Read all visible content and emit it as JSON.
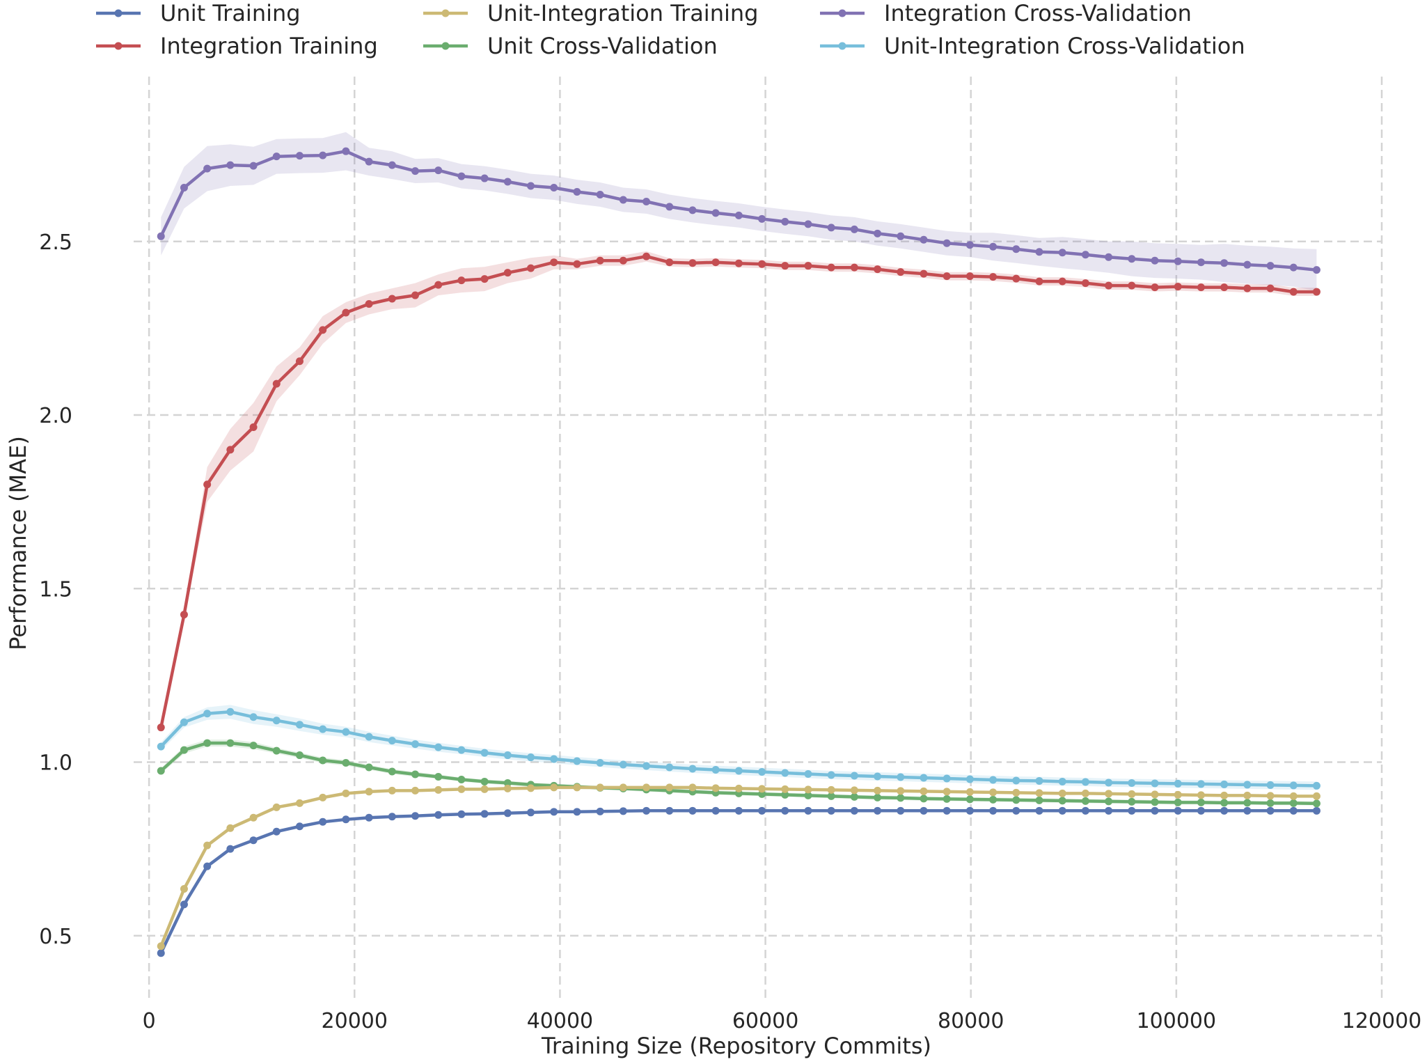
{
  "chart_data": {
    "type": "line",
    "title": "",
    "xlabel": "Training Size (Repository Commits)",
    "ylabel": "Performance (MAE)",
    "xlim": [
      -1500,
      120000
    ],
    "ylim": [
      0.315,
      2.975
    ],
    "xticks": [
      0,
      20000,
      40000,
      60000,
      80000,
      100000,
      120000
    ],
    "xtick_labels": [
      "0",
      "20000",
      "40000",
      "60000",
      "80000",
      "100000",
      "120000"
    ],
    "yticks": [
      0.5,
      1.0,
      1.5,
      2.0,
      2.5
    ],
    "ytick_labels": [
      "0.5",
      "1.0",
      "1.5",
      "2.0",
      "2.5"
    ],
    "grid": true,
    "legend_position": "top",
    "x": [
      1160,
      3410,
      5660,
      7910,
      10160,
      12410,
      14660,
      16910,
      19160,
      21410,
      23660,
      25910,
      28160,
      30410,
      32660,
      34910,
      37160,
      39410,
      41660,
      43910,
      46160,
      48410,
      50660,
      52910,
      55160,
      57410,
      59660,
      61910,
      64160,
      66410,
      68660,
      70910,
      73160,
      75410,
      77660,
      79910,
      82160,
      84410,
      86660,
      88910,
      91160,
      93410,
      95660,
      97910,
      100160,
      102410,
      104660,
      106910,
      109160,
      111410,
      113660
    ],
    "series": [
      {
        "name": "Unit Training",
        "color": "#5875b1",
        "values": [
          0.45,
          0.59,
          0.7,
          0.75,
          0.775,
          0.8,
          0.815,
          0.828,
          0.835,
          0.84,
          0.843,
          0.845,
          0.848,
          0.85,
          0.851,
          0.853,
          0.855,
          0.857,
          0.857,
          0.858,
          0.859,
          0.86,
          0.86,
          0.86,
          0.86,
          0.86,
          0.86,
          0.86,
          0.86,
          0.86,
          0.86,
          0.86,
          0.86,
          0.86,
          0.86,
          0.86,
          0.86,
          0.86,
          0.86,
          0.86,
          0.86,
          0.86,
          0.86,
          0.86,
          0.86,
          0.86,
          0.86,
          0.86,
          0.86,
          0.86,
          0.86
        ],
        "band": [
          0.004,
          0.004,
          0.004,
          0.004,
          0.004,
          0.004,
          0.004,
          0.004,
          0.004,
          0.004,
          0.004,
          0.004,
          0.004,
          0.004,
          0.004,
          0.004,
          0.004,
          0.004,
          0.004,
          0.004,
          0.004,
          0.004,
          0.004,
          0.004,
          0.004,
          0.004,
          0.004,
          0.004,
          0.004,
          0.004,
          0.004,
          0.004,
          0.004,
          0.004,
          0.004,
          0.004,
          0.004,
          0.004,
          0.004,
          0.004,
          0.004,
          0.004,
          0.004,
          0.004,
          0.004,
          0.004,
          0.004,
          0.004,
          0.004,
          0.004,
          0.004
        ]
      },
      {
        "name": "Unit Cross-Validation",
        "color": "#6aad6e",
        "values": [
          0.975,
          1.035,
          1.055,
          1.055,
          1.048,
          1.033,
          1.02,
          1.005,
          0.998,
          0.985,
          0.973,
          0.965,
          0.958,
          0.95,
          0.944,
          0.94,
          0.935,
          0.932,
          0.929,
          0.926,
          0.924,
          0.921,
          0.918,
          0.915,
          0.912,
          0.91,
          0.908,
          0.906,
          0.904,
          0.902,
          0.9,
          0.898,
          0.897,
          0.895,
          0.894,
          0.893,
          0.892,
          0.891,
          0.89,
          0.889,
          0.888,
          0.887,
          0.886,
          0.885,
          0.884,
          0.884,
          0.883,
          0.883,
          0.882,
          0.882,
          0.881
        ],
        "band": [
          0.008,
          0.01,
          0.01,
          0.01,
          0.01,
          0.008,
          0.008,
          0.008,
          0.008,
          0.007,
          0.007,
          0.007,
          0.006,
          0.006,
          0.006,
          0.006,
          0.006,
          0.006,
          0.006,
          0.006,
          0.006,
          0.006,
          0.006,
          0.006,
          0.006,
          0.006,
          0.006,
          0.006,
          0.006,
          0.006,
          0.006,
          0.006,
          0.006,
          0.006,
          0.006,
          0.006,
          0.006,
          0.006,
          0.006,
          0.006,
          0.006,
          0.006,
          0.006,
          0.006,
          0.006,
          0.006,
          0.006,
          0.006,
          0.006,
          0.006,
          0.006
        ]
      },
      {
        "name": "Integration Training",
        "color": "#c44e52",
        "values": [
          1.1,
          1.425,
          1.8,
          1.9,
          1.965,
          2.09,
          2.155,
          2.245,
          2.295,
          2.32,
          2.335,
          2.345,
          2.375,
          2.388,
          2.392,
          2.41,
          2.423,
          2.44,
          2.435,
          2.445,
          2.445,
          2.457,
          2.44,
          2.438,
          2.44,
          2.437,
          2.435,
          2.43,
          2.43,
          2.425,
          2.425,
          2.42,
          2.412,
          2.407,
          2.4,
          2.4,
          2.398,
          2.393,
          2.385,
          2.385,
          2.38,
          2.373,
          2.373,
          2.368,
          2.37,
          2.368,
          2.368,
          2.365,
          2.365,
          2.355,
          2.355
        ],
        "band": [
          0.012,
          0.015,
          0.05,
          0.06,
          0.07,
          0.05,
          0.04,
          0.04,
          0.03,
          0.03,
          0.03,
          0.035,
          0.03,
          0.035,
          0.035,
          0.03,
          0.03,
          0.02,
          0.015,
          0.015,
          0.015,
          0.015,
          0.012,
          0.012,
          0.012,
          0.012,
          0.012,
          0.012,
          0.012,
          0.012,
          0.012,
          0.012,
          0.012,
          0.012,
          0.012,
          0.012,
          0.012,
          0.012,
          0.012,
          0.012,
          0.012,
          0.012,
          0.012,
          0.012,
          0.012,
          0.012,
          0.012,
          0.012,
          0.012,
          0.012,
          0.012
        ]
      },
      {
        "name": "Integration Cross-Validation",
        "color": "#8172b3",
        "values": [
          2.515,
          2.655,
          2.71,
          2.72,
          2.718,
          2.745,
          2.747,
          2.748,
          2.76,
          2.73,
          2.72,
          2.703,
          2.705,
          2.688,
          2.682,
          2.672,
          2.66,
          2.655,
          2.643,
          2.635,
          2.62,
          2.615,
          2.6,
          2.59,
          2.582,
          2.575,
          2.565,
          2.557,
          2.55,
          2.54,
          2.535,
          2.523,
          2.515,
          2.505,
          2.495,
          2.49,
          2.485,
          2.478,
          2.47,
          2.468,
          2.462,
          2.455,
          2.45,
          2.445,
          2.443,
          2.44,
          2.438,
          2.433,
          2.43,
          2.425,
          2.418
        ],
        "band": [
          0.055,
          0.06,
          0.065,
          0.06,
          0.055,
          0.05,
          0.05,
          0.05,
          0.055,
          0.04,
          0.04,
          0.035,
          0.035,
          0.035,
          0.035,
          0.035,
          0.035,
          0.035,
          0.035,
          0.035,
          0.035,
          0.035,
          0.035,
          0.035,
          0.035,
          0.035,
          0.035,
          0.035,
          0.035,
          0.035,
          0.035,
          0.035,
          0.035,
          0.035,
          0.035,
          0.035,
          0.04,
          0.04,
          0.04,
          0.045,
          0.045,
          0.045,
          0.05,
          0.05,
          0.05,
          0.05,
          0.055,
          0.055,
          0.055,
          0.055,
          0.06
        ]
      },
      {
        "name": "Unit-Integration Training",
        "color": "#ccb974",
        "values": [
          0.47,
          0.635,
          0.76,
          0.81,
          0.84,
          0.87,
          0.882,
          0.898,
          0.91,
          0.915,
          0.918,
          0.918,
          0.92,
          0.922,
          0.922,
          0.924,
          0.925,
          0.927,
          0.927,
          0.927,
          0.927,
          0.927,
          0.927,
          0.927,
          0.925,
          0.924,
          0.923,
          0.922,
          0.921,
          0.92,
          0.919,
          0.918,
          0.917,
          0.916,
          0.915,
          0.914,
          0.913,
          0.912,
          0.911,
          0.91,
          0.91,
          0.909,
          0.908,
          0.907,
          0.906,
          0.905,
          0.904,
          0.904,
          0.903,
          0.902,
          0.902
        ],
        "band": [
          0.004,
          0.004,
          0.004,
          0.004,
          0.004,
          0.004,
          0.004,
          0.004,
          0.004,
          0.004,
          0.004,
          0.004,
          0.004,
          0.004,
          0.004,
          0.004,
          0.004,
          0.004,
          0.004,
          0.004,
          0.004,
          0.004,
          0.004,
          0.004,
          0.004,
          0.004,
          0.004,
          0.004,
          0.004,
          0.004,
          0.004,
          0.004,
          0.004,
          0.004,
          0.004,
          0.004,
          0.004,
          0.004,
          0.004,
          0.004,
          0.004,
          0.004,
          0.004,
          0.004,
          0.004,
          0.004,
          0.004,
          0.004,
          0.004,
          0.004,
          0.004
        ]
      },
      {
        "name": "Unit-Integration Cross-Validation",
        "color": "#77bedb",
        "values": [
          1.045,
          1.115,
          1.14,
          1.145,
          1.13,
          1.12,
          1.108,
          1.095,
          1.087,
          1.073,
          1.062,
          1.052,
          1.043,
          1.035,
          1.027,
          1.02,
          1.014,
          1.009,
          1.003,
          0.998,
          0.993,
          0.989,
          0.985,
          0.981,
          0.978,
          0.975,
          0.972,
          0.969,
          0.966,
          0.963,
          0.961,
          0.959,
          0.957,
          0.955,
          0.953,
          0.951,
          0.949,
          0.947,
          0.946,
          0.944,
          0.943,
          0.941,
          0.94,
          0.939,
          0.938,
          0.937,
          0.936,
          0.935,
          0.934,
          0.933,
          0.932
        ],
        "band": [
          0.012,
          0.015,
          0.018,
          0.02,
          0.02,
          0.018,
          0.018,
          0.016,
          0.015,
          0.015,
          0.014,
          0.013,
          0.013,
          0.012,
          0.012,
          0.012,
          0.012,
          0.012,
          0.012,
          0.012,
          0.012,
          0.012,
          0.012,
          0.012,
          0.012,
          0.012,
          0.012,
          0.012,
          0.012,
          0.012,
          0.012,
          0.012,
          0.012,
          0.012,
          0.012,
          0.012,
          0.012,
          0.012,
          0.012,
          0.012,
          0.012,
          0.012,
          0.012,
          0.012,
          0.012,
          0.012,
          0.012,
          0.012,
          0.012,
          0.012,
          0.012
        ]
      }
    ],
    "legend_order": [
      0,
      2,
      4,
      1,
      3,
      5
    ]
  }
}
